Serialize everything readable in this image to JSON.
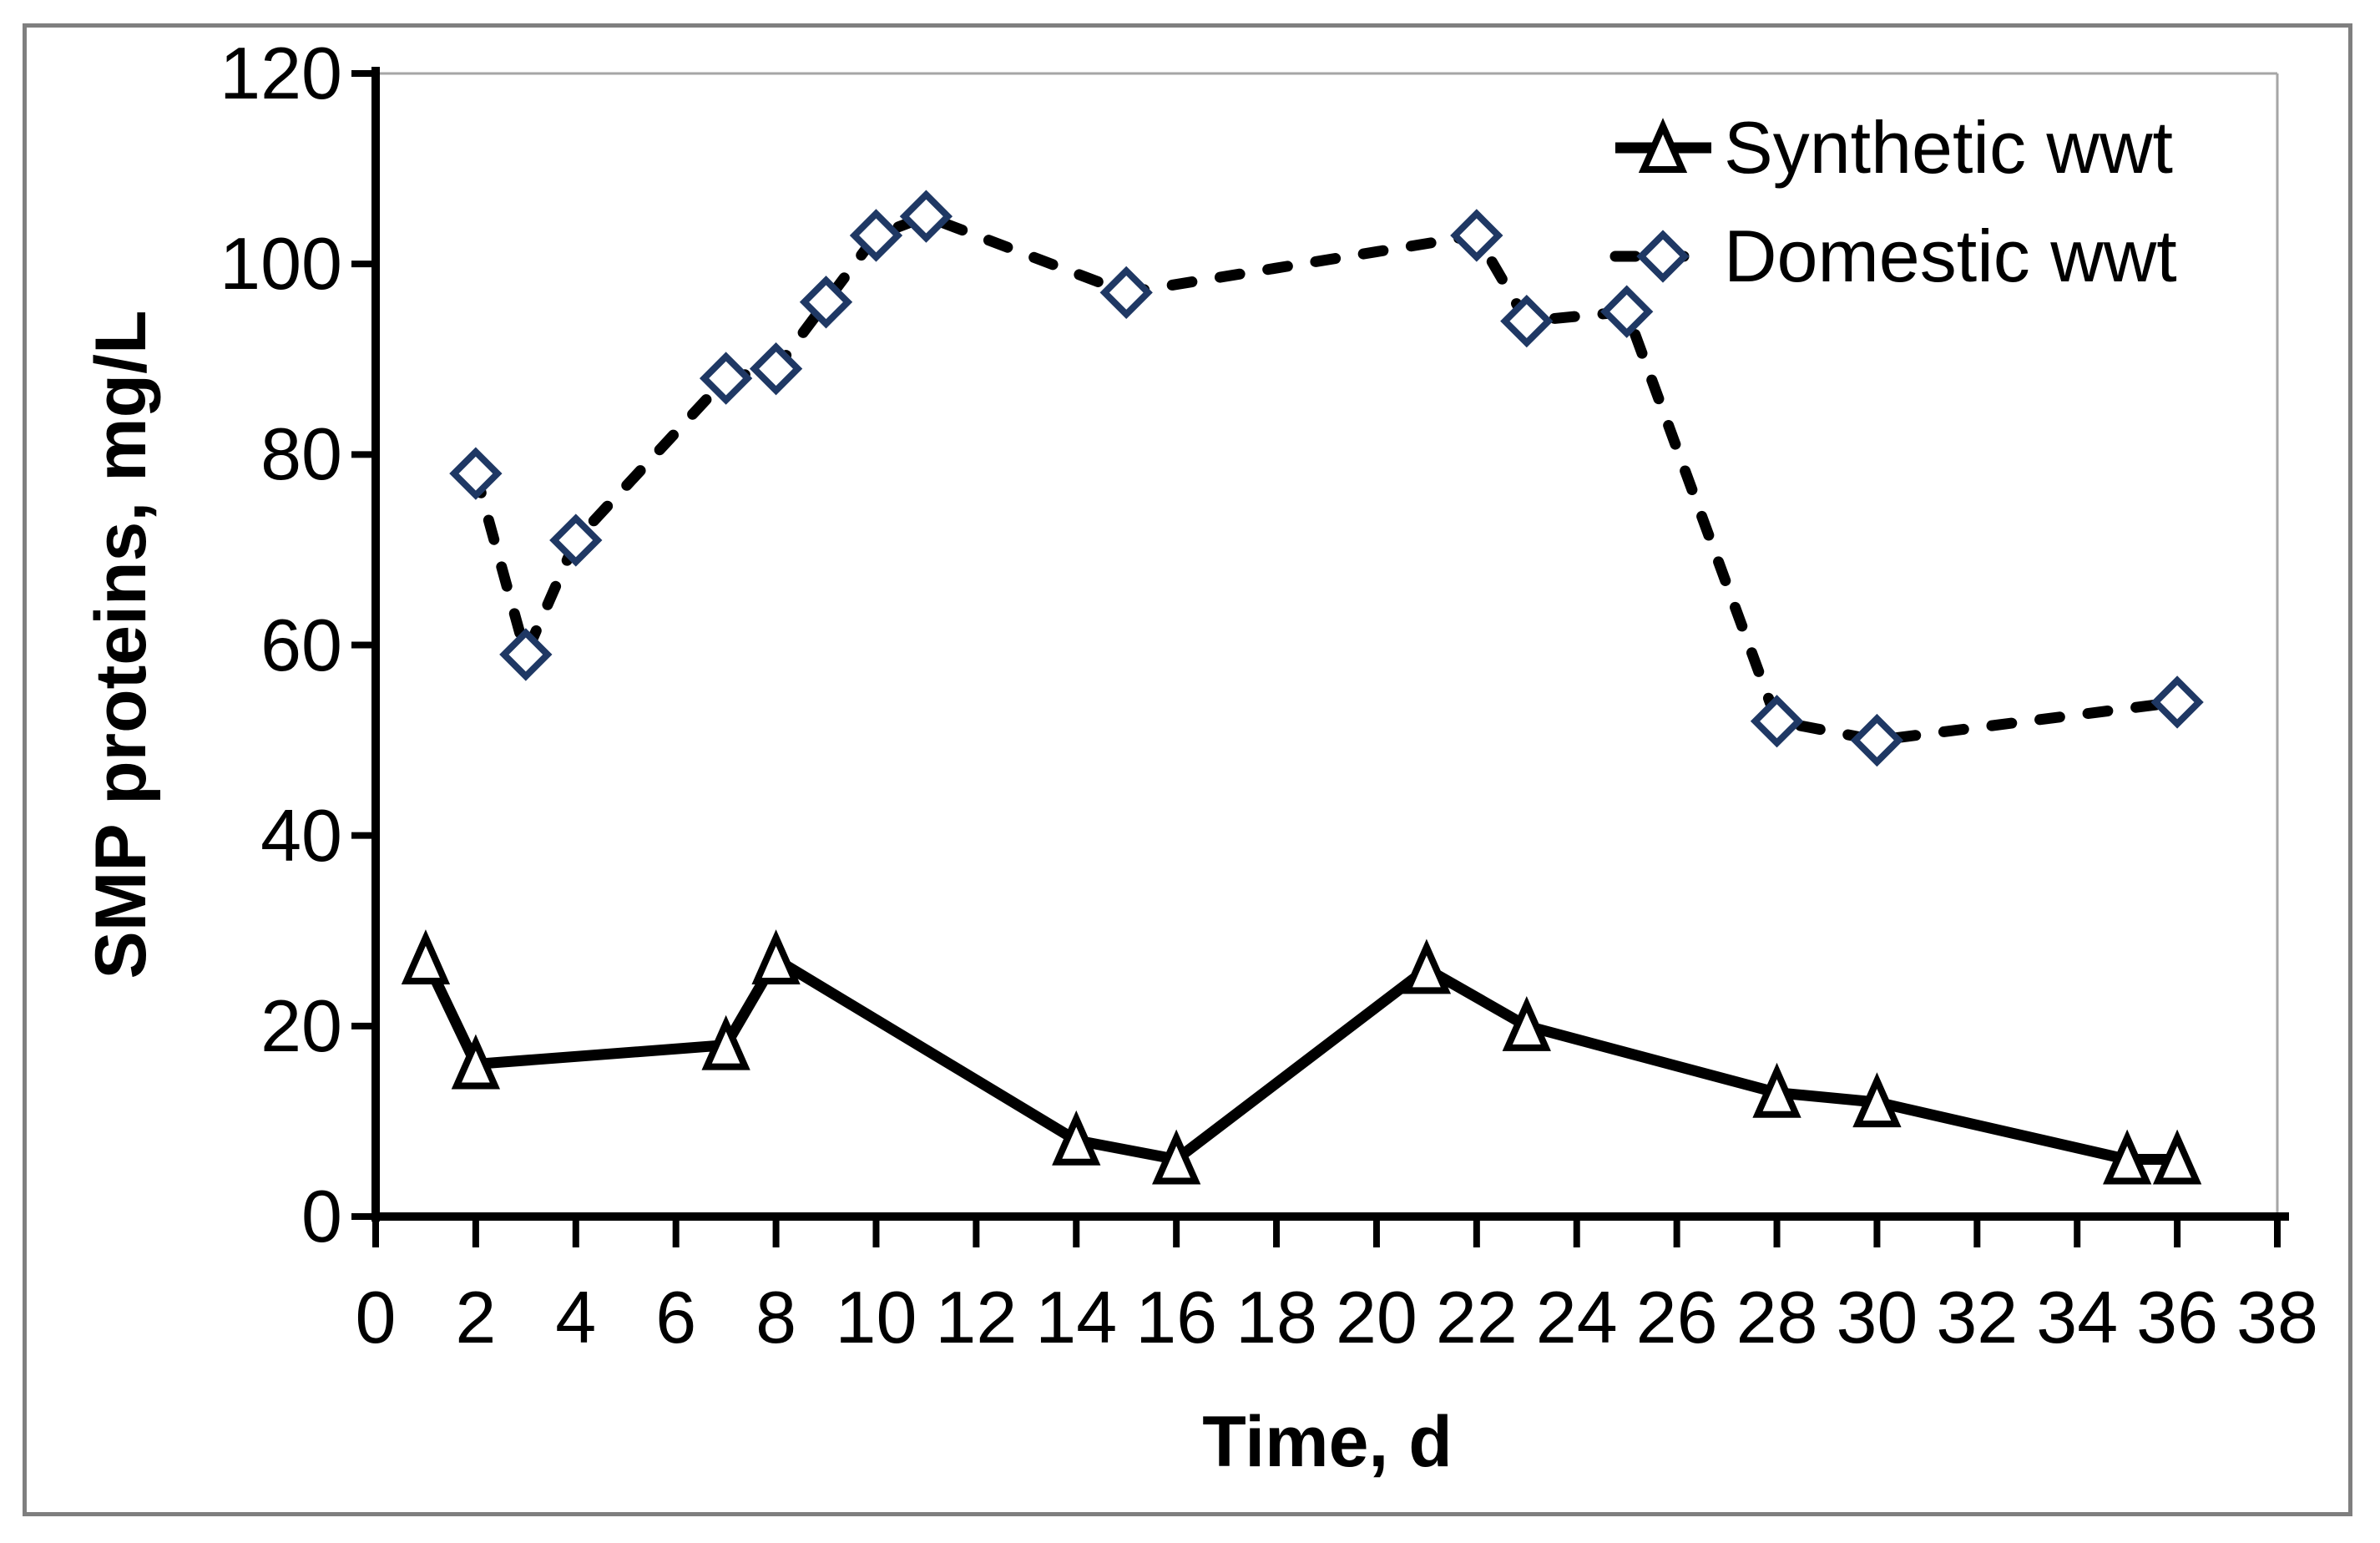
{
  "figure": {
    "y_axis": {
      "title": "SMP proteins, mg/L",
      "ticks": [
        0,
        20,
        40,
        60,
        80,
        100,
        120
      ]
    },
    "x_axis": {
      "title": "Time, d",
      "ticks": [
        0,
        2,
        4,
        6,
        8,
        10,
        12,
        14,
        16,
        18,
        20,
        22,
        24,
        26,
        28,
        30,
        32,
        34,
        36,
        38
      ]
    },
    "legend": {
      "items": [
        {
          "label": "Synthetic wwt",
          "marker": "triangle",
          "line": "solid"
        },
        {
          "label": "Domestic wwt",
          "marker": "diamond",
          "line": "dashed"
        }
      ]
    },
    "colors": {
      "line": "#000000",
      "triangle_stroke": "#000000",
      "diamond_stroke": "#1f3864",
      "marker_fill": "#ffffff",
      "plot_border": "#a6a6a6",
      "outer_frame": "#7f7f7f",
      "text": "#000000",
      "background": "#ffffff"
    }
  },
  "chart_data": {
    "type": "line",
    "title": "",
    "xlabel": "Time, d",
    "ylabel": "SMP proteins, mg/L",
    "xlim": [
      0,
      38
    ],
    "ylim": [
      0,
      120
    ],
    "x_tick_step": 2,
    "y_tick_step": 20,
    "grid": false,
    "legend_position": "top-right",
    "series": [
      {
        "name": "Synthetic wwt",
        "line_style": "solid",
        "marker": "triangle",
        "color": "#000000",
        "points": [
          [
            1,
            27
          ],
          [
            2,
            16
          ],
          [
            7,
            18
          ],
          [
            8,
            27
          ],
          [
            14,
            8
          ],
          [
            16,
            6
          ],
          [
            21,
            26
          ],
          [
            23,
            20
          ],
          [
            28,
            13
          ],
          [
            30,
            12
          ],
          [
            35,
            6
          ],
          [
            36,
            6
          ]
        ]
      },
      {
        "name": "Domestic wwt",
        "line_style": "dashed",
        "marker": "diamond",
        "color": "#000000",
        "points": [
          [
            2,
            78
          ],
          [
            3,
            59
          ],
          [
            4,
            71
          ],
          [
            7,
            88
          ],
          [
            8,
            89
          ],
          [
            9,
            96
          ],
          [
            10,
            103
          ],
          [
            11,
            105
          ],
          [
            15,
            97
          ],
          [
            22,
            103
          ],
          [
            23,
            94
          ],
          [
            25,
            95
          ],
          [
            28,
            52
          ],
          [
            30,
            50
          ],
          [
            36,
            54
          ]
        ]
      }
    ]
  }
}
